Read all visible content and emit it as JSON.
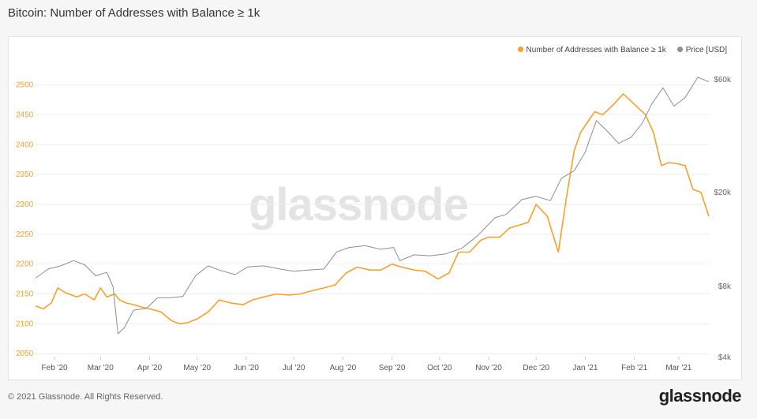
{
  "title": "Bitcoin: Number of Addresses with Balance ≥ 1k",
  "footer": "© 2021 Glassnode. All Rights Reserved.",
  "brand": "glassnode",
  "watermark": "glassnode",
  "colors": {
    "addresses": "#f7a12d",
    "price": "#8e8e8e",
    "axis_left": "#f7a12d",
    "axis_right": "#666666"
  },
  "chart_data": {
    "type": "line",
    "title": "Bitcoin: Number of Addresses with Balance ≥ 1k",
    "legend_placement": "top-right",
    "grid": "horizontal",
    "x_ticks": [
      "Feb '20",
      "Mar '20",
      "Apr '20",
      "May '20",
      "Jun '20",
      "Jul '20",
      "Aug '20",
      "Sep '20",
      "Oct '20",
      "Nov '20",
      "Dec '20",
      "Jan '21",
      "Feb '21",
      "Mar '21"
    ],
    "y_left": {
      "ticks": [
        2050,
        2100,
        2150,
        2200,
        2250,
        2300,
        2350,
        2400,
        2450,
        2500
      ],
      "range": [
        2045,
        2510
      ]
    },
    "y_right": {
      "scale": "log",
      "ticks": [
        "$4k",
        "$8k",
        "$20k",
        "$60k"
      ],
      "tick_values": [
        4000,
        8000,
        20000,
        60000
      ],
      "range": [
        4000,
        60000
      ]
    },
    "series": [
      {
        "name": "Number of Addresses with Balance ≥ 1k",
        "axis": "left",
        "x": [
          "2020-01-20",
          "2020-01-25",
          "2020-01-30",
          "2020-02-03",
          "2020-02-08",
          "2020-02-15",
          "2020-02-20",
          "2020-02-26",
          "2020-03-01",
          "2020-03-05",
          "2020-03-10",
          "2020-03-13",
          "2020-03-17",
          "2020-03-22",
          "2020-03-27",
          "2020-04-01",
          "2020-04-08",
          "2020-04-15",
          "2020-04-20",
          "2020-04-25",
          "2020-05-01",
          "2020-05-08",
          "2020-05-15",
          "2020-05-22",
          "2020-05-30",
          "2020-06-05",
          "2020-06-12",
          "2020-06-20",
          "2020-06-28",
          "2020-07-05",
          "2020-07-12",
          "2020-07-20",
          "2020-07-27",
          "2020-08-03",
          "2020-08-10",
          "2020-08-18",
          "2020-08-25",
          "2020-09-01",
          "2020-09-07",
          "2020-09-15",
          "2020-09-22",
          "2020-09-30",
          "2020-10-07",
          "2020-10-13",
          "2020-10-20",
          "2020-10-27",
          "2020-11-01",
          "2020-11-08",
          "2020-11-14",
          "2020-11-20",
          "2020-11-26",
          "2020-12-01",
          "2020-12-08",
          "2020-12-15",
          "2020-12-20",
          "2020-12-25",
          "2020-12-29",
          "2021-01-03",
          "2021-01-07",
          "2021-01-12",
          "2021-01-18",
          "2021-01-25",
          "2021-02-02",
          "2021-02-08",
          "2021-02-13",
          "2021-02-18",
          "2021-02-23",
          "2021-02-28",
          "2021-03-05",
          "2021-03-10",
          "2021-03-15",
          "2021-03-20"
        ],
        "values": [
          2130,
          2125,
          2135,
          2160,
          2152,
          2145,
          2150,
          2140,
          2160,
          2145,
          2150,
          2140,
          2135,
          2132,
          2128,
          2125,
          2120,
          2105,
          2100,
          2102,
          2108,
          2120,
          2140,
          2135,
          2132,
          2140,
          2145,
          2150,
          2148,
          2150,
          2155,
          2160,
          2165,
          2185,
          2195,
          2190,
          2190,
          2200,
          2195,
          2190,
          2188,
          2175,
          2185,
          2220,
          2220,
          2240,
          2245,
          2245,
          2260,
          2265,
          2270,
          2300,
          2280,
          2220,
          2310,
          2390,
          2420,
          2440,
          2455,
          2450,
          2465,
          2485,
          2465,
          2450,
          2420,
          2365,
          2370,
          2368,
          2365,
          2325,
          2320,
          2280
        ]
      },
      {
        "name": "Price [USD]",
        "axis": "right",
        "x": [
          "2020-01-20",
          "2020-01-28",
          "2020-02-05",
          "2020-02-13",
          "2020-02-20",
          "2020-02-27",
          "2020-03-05",
          "2020-03-09",
          "2020-03-12",
          "2020-03-16",
          "2020-03-22",
          "2020-03-30",
          "2020-04-06",
          "2020-04-14",
          "2020-04-22",
          "2020-04-30",
          "2020-05-08",
          "2020-05-15",
          "2020-05-25",
          "2020-06-02",
          "2020-06-12",
          "2020-06-22",
          "2020-07-01",
          "2020-07-10",
          "2020-07-20",
          "2020-07-28",
          "2020-08-05",
          "2020-08-15",
          "2020-08-25",
          "2020-09-02",
          "2020-09-06",
          "2020-09-15",
          "2020-09-25",
          "2020-10-05",
          "2020-10-15",
          "2020-10-25",
          "2020-11-05",
          "2020-11-12",
          "2020-11-22",
          "2020-12-01",
          "2020-12-10",
          "2020-12-17",
          "2020-12-25",
          "2021-01-01",
          "2021-01-08",
          "2021-01-15",
          "2021-01-22",
          "2021-01-30",
          "2021-02-06",
          "2021-02-12",
          "2021-02-19",
          "2021-02-26",
          "2021-03-05",
          "2021-03-13",
          "2021-03-20"
        ],
        "values": [
          8600,
          9400,
          9700,
          10200,
          9800,
          8800,
          9100,
          7900,
          5000,
          5300,
          6300,
          6400,
          7100,
          7100,
          7200,
          8800,
          9700,
          9300,
          8900,
          9600,
          9700,
          9400,
          9200,
          9300,
          9400,
          11100,
          11600,
          11800,
          11400,
          11600,
          10200,
          10800,
          10700,
          10900,
          11500,
          13000,
          15500,
          16000,
          18500,
          19100,
          18300,
          22800,
          24500,
          29400,
          40000,
          36000,
          32000,
          34000,
          39000,
          47000,
          55000,
          46000,
          50000,
          61000,
          58300
        ]
      }
    ]
  }
}
